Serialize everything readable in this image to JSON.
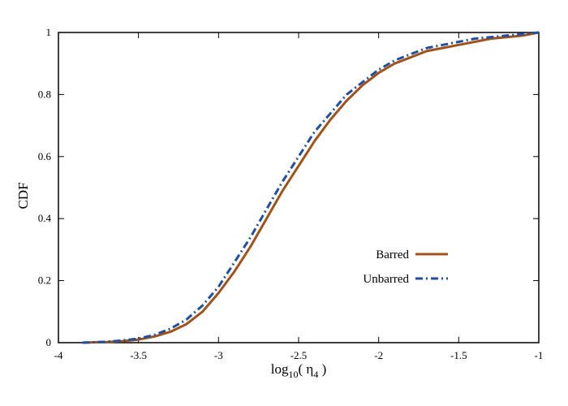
{
  "chart_data": {
    "type": "line",
    "title": "",
    "xlabel": "log10( η4 )",
    "xlabel_parts": {
      "prefix": "log",
      "sub": "10",
      "mid": "( η",
      "sub2": "4",
      "suffix": " )"
    },
    "ylabel": "CDF",
    "xlim": [
      -4,
      -1
    ],
    "ylim": [
      0,
      1
    ],
    "x_ticks": [
      -4,
      -3.5,
      -3,
      -2.5,
      -2,
      -1.5,
      -1
    ],
    "x_tick_labels": [
      "-4",
      "-3.5",
      "-3",
      "-2.5",
      "-2",
      "-1.5",
      "-1"
    ],
    "y_ticks": [
      0,
      0.2,
      0.4,
      0.6,
      0.8,
      1
    ],
    "y_tick_labels": [
      "0",
      "0.2",
      "0.4",
      "0.6",
      "0.8",
      "1"
    ],
    "grid": false,
    "legend_position": "lower-right",
    "series": [
      {
        "name": "Barred",
        "color": "#a0521b",
        "dash": "solid",
        "x": [
          -3.85,
          -3.7,
          -3.6,
          -3.5,
          -3.4,
          -3.3,
          -3.2,
          -3.1,
          -3.0,
          -2.9,
          -2.8,
          -2.7,
          -2.6,
          -2.5,
          -2.4,
          -2.3,
          -2.2,
          -2.1,
          -2.0,
          -1.9,
          -1.8,
          -1.7,
          -1.6,
          -1.5,
          -1.4,
          -1.3,
          -1.2,
          -1.1,
          -1.0
        ],
        "values": [
          0.0,
          0.002,
          0.005,
          0.01,
          0.02,
          0.035,
          0.06,
          0.1,
          0.16,
          0.23,
          0.31,
          0.4,
          0.49,
          0.57,
          0.65,
          0.72,
          0.78,
          0.83,
          0.87,
          0.9,
          0.92,
          0.94,
          0.95,
          0.96,
          0.97,
          0.98,
          0.985,
          0.99,
          1.0
        ]
      },
      {
        "name": "Unbarred",
        "color": "#1f4fa0",
        "dash": "dash-dot",
        "x": [
          -3.85,
          -3.7,
          -3.6,
          -3.5,
          -3.4,
          -3.3,
          -3.2,
          -3.1,
          -3.0,
          -2.9,
          -2.8,
          -2.7,
          -2.6,
          -2.5,
          -2.4,
          -2.3,
          -2.2,
          -2.1,
          -2.0,
          -1.9,
          -1.8,
          -1.7,
          -1.6,
          -1.5,
          -1.4,
          -1.3,
          -1.2,
          -1.1,
          -1.0
        ],
        "values": [
          0.0,
          0.003,
          0.007,
          0.013,
          0.025,
          0.045,
          0.075,
          0.12,
          0.18,
          0.26,
          0.34,
          0.43,
          0.52,
          0.6,
          0.68,
          0.74,
          0.8,
          0.84,
          0.88,
          0.91,
          0.93,
          0.95,
          0.96,
          0.97,
          0.98,
          0.985,
          0.99,
          0.995,
          1.0
        ]
      }
    ]
  }
}
